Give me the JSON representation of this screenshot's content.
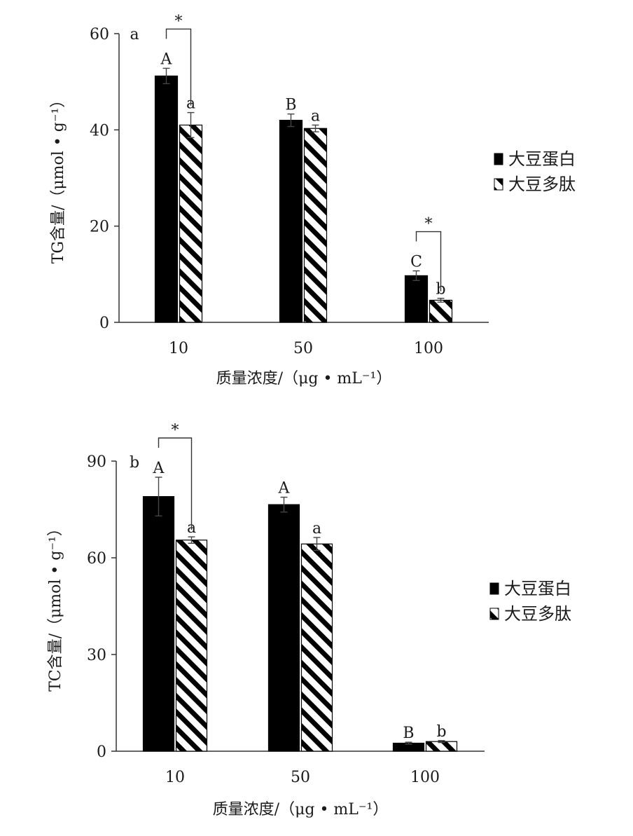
{
  "chart_data": [
    {
      "type": "bar",
      "panel_tag": "a",
      "categories": [
        "10",
        "50",
        "100"
      ],
      "xlabel": "质量浓度/（μg • mL⁻¹）",
      "ylabel": "TG含量/（μmol • g⁻¹）",
      "ylim": [
        0,
        60
      ],
      "yticks": [
        "0",
        "20",
        "40",
        "60"
      ],
      "grid": false,
      "legend_position": "right",
      "series": [
        {
          "name": "大豆蛋白",
          "pattern": "solid",
          "values": [
            51.2,
            42.0,
            9.7
          ],
          "errors": [
            1.6,
            1.3,
            1.0
          ],
          "letters": [
            "A",
            "B",
            "C"
          ]
        },
        {
          "name": "大豆多肽",
          "pattern": "diagonal-stripes",
          "values": [
            41.0,
            40.3,
            4.6
          ],
          "errors": [
            2.6,
            0.7,
            0.4
          ],
          "letters": [
            "a",
            "a",
            "b"
          ]
        }
      ],
      "significance": [
        {
          "category": "10",
          "label": "*"
        },
        {
          "category": "100",
          "label": "*"
        }
      ]
    },
    {
      "type": "bar",
      "panel_tag": "b",
      "categories": [
        "10",
        "50",
        "100"
      ],
      "xlabel": "质量浓度/（μg • mL⁻¹）",
      "ylabel": "TC含量/（μmol • g⁻¹）",
      "ylim": [
        0,
        90
      ],
      "yticks": [
        "0",
        "30",
        "60",
        "90"
      ],
      "grid": false,
      "legend_position": "right",
      "series": [
        {
          "name": "大豆蛋白",
          "pattern": "solid",
          "values": [
            79.0,
            76.5,
            2.5
          ],
          "errors": [
            6.0,
            2.3,
            0.3
          ],
          "letters": [
            "A",
            "A",
            "B"
          ]
        },
        {
          "name": "大豆多肽",
          "pattern": "diagonal-stripes",
          "values": [
            65.5,
            64.3,
            3.0
          ],
          "errors": [
            1.0,
            2.0,
            0.3
          ],
          "letters": [
            "a",
            "a",
            "b"
          ]
        }
      ],
      "significance": [
        {
          "category": "10",
          "label": "*"
        }
      ]
    }
  ]
}
